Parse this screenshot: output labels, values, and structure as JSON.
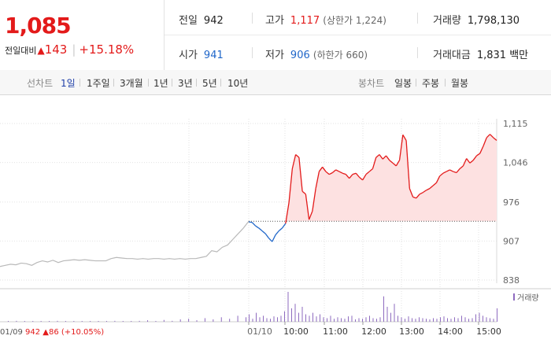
{
  "quote": {
    "current_price": "1,085",
    "change_label": "전일대비",
    "change_arrow": "▲",
    "change_amount": "143",
    "change_pct": "+15.18%",
    "prev_close_label": "전일",
    "prev_close": "942",
    "open_label": "시가",
    "open": "941",
    "high_label": "고가",
    "high": "1,117",
    "upper_limit": "(상한가 1,224)",
    "low_label": "저가",
    "low": "906",
    "lower_limit": "(하한가 660)",
    "volume_label": "거래량",
    "volume": "1,798,130",
    "turnover_label": "거래대금",
    "turnover": "1,831 백만"
  },
  "period_bar": {
    "line_label": "선차트",
    "periods": [
      "1일",
      "1주일",
      "3개월",
      "1년",
      "3년",
      "5년",
      "10년"
    ],
    "active_period": "1일",
    "candle_label": "봉차트",
    "candle_periods": [
      "일봉",
      "주봉",
      "월봉"
    ]
  },
  "colors": {
    "up": "#e31a1a",
    "down": "#1f66c9",
    "prev_day": "#b9b9b9",
    "fill": "#fde1e1",
    "volume": "#8e6bbf"
  },
  "chart_data": {
    "type": "line",
    "prev_close": 942,
    "ylim": [
      838,
      1115
    ],
    "y_ticks": [
      "1,115",
      "1,046",
      "976",
      "907",
      "838"
    ],
    "x_ticks": [
      "01/10",
      "10:00",
      "11:00",
      "12:00",
      "13:00",
      "14:00",
      "15:00"
    ],
    "prev_day_label": "01/09",
    "prev_day_close": "942",
    "prev_day_arrow": "▲",
    "prev_day_change": "86",
    "prev_day_change_pct": "(+10.05%)",
    "volume_legend": "거래량",
    "series": [
      {
        "day": "01/09",
        "values": [
          862,
          864,
          866,
          865,
          868,
          867,
          864,
          869,
          872,
          870,
          873,
          869,
          872,
          873,
          874,
          873,
          874,
          873,
          872,
          872,
          872,
          876,
          878,
          877,
          876,
          876,
          875,
          876,
          875,
          876,
          876,
          875,
          876,
          875,
          876,
          875,
          876,
          876,
          878,
          880,
          890,
          888,
          896,
          900,
          910,
          920,
          930,
          942
        ]
      },
      {
        "day": "01/10",
        "time_range": [
          "09:00",
          "15:30"
        ],
        "values": [
          941,
          940,
          934,
          930,
          925,
          920,
          912,
          906,
          918,
          925,
          930,
          938,
          975,
          1035,
          1060,
          1055,
          995,
          990,
          945,
          960,
          1000,
          1030,
          1038,
          1030,
          1025,
          1028,
          1033,
          1030,
          1027,
          1025,
          1018,
          1025,
          1027,
          1020,
          1015,
          1025,
          1030,
          1035,
          1055,
          1060,
          1052,
          1058,
          1050,
          1045,
          1040,
          1050,
          1095,
          1085,
          1000,
          985,
          983,
          990,
          993,
          997,
          1000,
          1005,
          1010,
          1022,
          1027,
          1030,
          1033,
          1030,
          1028,
          1035,
          1040,
          1053,
          1045,
          1050,
          1058,
          1062,
          1075,
          1090,
          1096,
          1090,
          1085
        ]
      }
    ],
    "volume": [
      {
        "day": "01/09",
        "values": [
          0.02,
          0.03,
          0.01,
          0.02,
          0.02,
          0.01,
          0.03,
          0.02,
          0.01,
          0.02,
          0.02,
          0.01,
          0.02,
          0.03,
          0.01,
          0.02,
          0.03,
          0.05,
          0.02,
          0.06,
          0.03,
          0.08,
          0.1,
          0.05,
          0.12,
          0.08,
          0.15,
          0.1,
          0.2,
          0.15
        ]
      },
      {
        "day": "01/10",
        "values": [
          0.25,
          0.1,
          0.3,
          0.15,
          0.2,
          0.12,
          0.1,
          0.18,
          0.15,
          0.2,
          0.35,
          1.0,
          0.45,
          0.6,
          0.3,
          0.5,
          0.25,
          0.2,
          0.3,
          0.18,
          0.25,
          0.15,
          0.12,
          0.2,
          0.1,
          0.15,
          0.12,
          0.1,
          0.18,
          0.2,
          0.08,
          0.12,
          0.1,
          0.15,
          0.2,
          0.12,
          0.1,
          0.15,
          0.85,
          0.5,
          0.3,
          0.6,
          0.2,
          0.15,
          0.1,
          0.18,
          0.12,
          0.1,
          0.15,
          0.12,
          0.1,
          0.08,
          0.12,
          0.1,
          0.15,
          0.18,
          0.12,
          0.1,
          0.15,
          0.12,
          0.2,
          0.15,
          0.1,
          0.12,
          0.25,
          0.3,
          0.2,
          0.15,
          0.12,
          0.1,
          0.45
        ]
      }
    ]
  }
}
